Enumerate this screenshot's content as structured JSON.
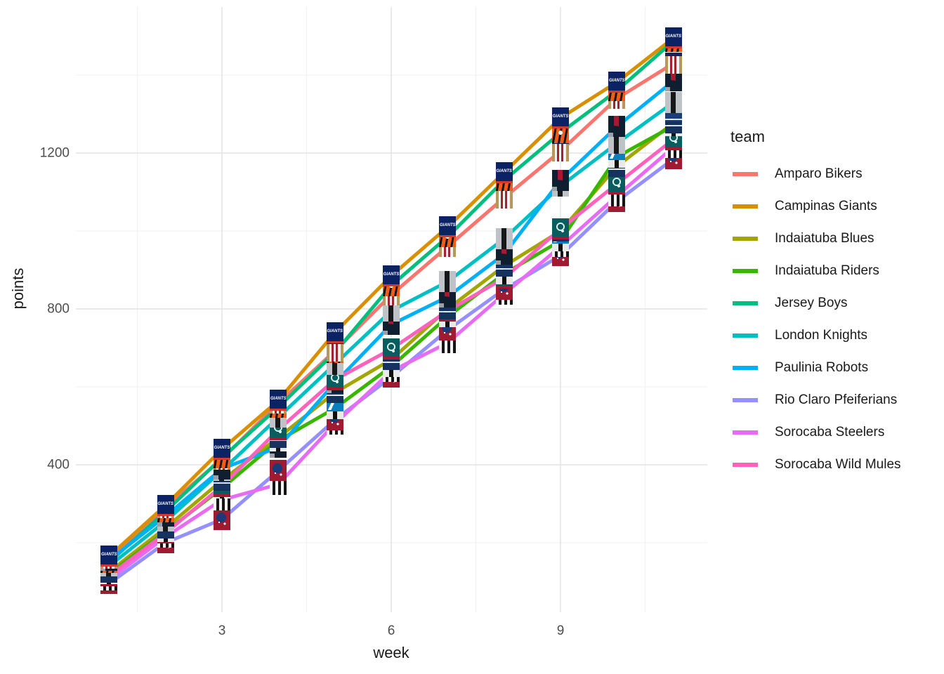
{
  "chart_data": {
    "type": "line",
    "title": "",
    "xlabel": "week",
    "ylabel": "points",
    "legend_title": "team",
    "x": [
      1,
      2,
      3,
      4,
      5,
      6,
      7,
      8,
      9,
      10,
      11
    ],
    "x_ticks": [
      3,
      6,
      9
    ],
    "x_minor": [
      1.5,
      4.5,
      7.5,
      10.5
    ],
    "y_ticks": [
      400,
      800,
      1200
    ],
    "y_minor": [
      200,
      600,
      1000,
      1400
    ],
    "xlim": [
      0.4,
      11.6
    ],
    "ylim": [
      45,
      1575
    ],
    "grid": "on",
    "legend_position": "right",
    "marker_note": "team logo image at every data point",
    "series": [
      {
        "name": "Amparo Bikers",
        "color": "#F8766D",
        "logo": "amparo",
        "values": [
          160,
          290,
          415,
          558,
          692,
          836,
          960,
          1085,
          1205,
          1340,
          1430
        ]
      },
      {
        "name": "Campinas Giants",
        "color": "#D89000",
        "logo": "campinas",
        "logo_text": "GIANTS",
        "values": [
          165,
          296,
          440,
          565,
          739,
          885,
          1010,
          1150,
          1290,
          1382,
          1495
        ]
      },
      {
        "name": "Indaiatuba Blues",
        "color": "#A3A500",
        "logo": "blues",
        "values": [
          125,
          238,
          360,
          470,
          585,
          670,
          800,
          910,
          1000,
          1166,
          1277
        ]
      },
      {
        "name": "Indaiatuba Riders",
        "color": "#39B600",
        "logo": "riders",
        "values": [
          120,
          228,
          340,
          462,
          545,
          652,
          780,
          890,
          975,
          1190,
          1270
        ]
      },
      {
        "name": "Jersey Boys",
        "color": "#00BF7D",
        "logo": "jersey",
        "values": [
          150,
          280,
          418,
          548,
          688,
          860,
          985,
          1130,
          1252,
          1360,
          1487
        ]
      },
      {
        "name": "London Knights",
        "color": "#00BFC4",
        "logo": "london",
        "values": [
          140,
          255,
          385,
          522,
          658,
          795,
          870,
          980,
          1115,
          1225,
          1330
        ]
      },
      {
        "name": "Paulinia Robots",
        "color": "#00B0F6",
        "logo": "paulinia",
        "values": [
          155,
          268,
          390,
          445,
          610,
          760,
          831,
          940,
          1130,
          1268,
          1385
        ]
      },
      {
        "name": "Rio Claro Pfeiferians",
        "color": "#9590FF",
        "logo": "rio",
        "values": [
          95,
          200,
          260,
          385,
          515,
          625,
          746,
          850,
          937,
          1076,
          1185
        ]
      },
      {
        "name": "Sorocaba Steelers",
        "color": "#E76BF3",
        "logo": "steelers",
        "values": [
          105,
          215,
          310,
          350,
          505,
          640,
          713,
          838,
          960,
          1090,
          1215
        ]
      },
      {
        "name": "Sorocaba Wild Mules",
        "color": "#FF62BC",
        "logo": "wildmules",
        "values": [
          115,
          225,
          345,
          490,
          618,
          697,
          795,
          879,
          1005,
          1121,
          1235
        ]
      }
    ]
  }
}
